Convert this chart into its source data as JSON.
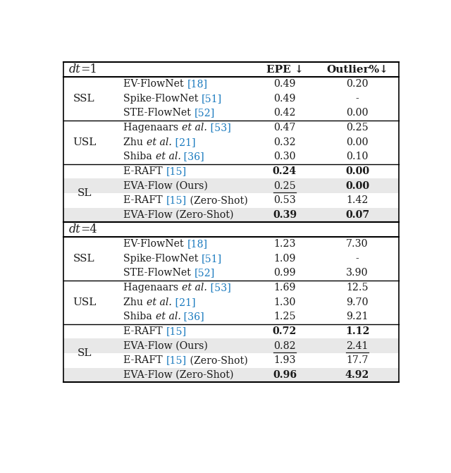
{
  "col_headers": [
    "EPE ↓",
    "Outlier%↓"
  ],
  "sections": [
    {
      "dt_label": "dt=1",
      "groups": [
        {
          "label": "SSL",
          "rows": [
            {
              "parts": [
                {
                  "text": "EV-FlowNet ",
                  "style": "normal"
                },
                {
                  "text": "[18]",
                  "style": "ref"
                }
              ],
              "epe": "0.49",
              "outlier": "0.20",
              "epe_bold": false,
              "outlier_bold": false,
              "epe_ul": false,
              "outlier_ul": false,
              "highlight": false
            },
            {
              "parts": [
                {
                  "text": "Spike-FlowNet ",
                  "style": "normal"
                },
                {
                  "text": "[51]",
                  "style": "ref"
                }
              ],
              "epe": "0.49",
              "outlier": "-",
              "epe_bold": false,
              "outlier_bold": false,
              "epe_ul": false,
              "outlier_ul": false,
              "highlight": false
            },
            {
              "parts": [
                {
                  "text": "STE-FlowNet ",
                  "style": "normal"
                },
                {
                  "text": "[52]",
                  "style": "ref"
                }
              ],
              "epe": "0.42",
              "outlier": "0.00",
              "epe_bold": false,
              "outlier_bold": false,
              "epe_ul": false,
              "outlier_ul": false,
              "highlight": false
            }
          ]
        },
        {
          "label": "USL",
          "rows": [
            {
              "parts": [
                {
                  "text": "Hagenaars ",
                  "style": "normal"
                },
                {
                  "text": "et al.",
                  "style": "italic"
                },
                {
                  "text": " [53]",
                  "style": "ref"
                }
              ],
              "epe": "0.47",
              "outlier": "0.25",
              "epe_bold": false,
              "outlier_bold": false,
              "epe_ul": false,
              "outlier_ul": false,
              "highlight": false
            },
            {
              "parts": [
                {
                  "text": "Zhu ",
                  "style": "normal"
                },
                {
                  "text": "et al.",
                  "style": "italic"
                },
                {
                  "text": " [21]",
                  "style": "ref"
                }
              ],
              "epe": "0.32",
              "outlier": "0.00",
              "epe_bold": false,
              "outlier_bold": false,
              "epe_ul": false,
              "outlier_ul": false,
              "highlight": false
            },
            {
              "parts": [
                {
                  "text": "Shiba ",
                  "style": "normal"
                },
                {
                  "text": "et al.",
                  "style": "italic"
                },
                {
                  "text": " [36]",
                  "style": "ref"
                }
              ],
              "epe": "0.30",
              "outlier": "0.10",
              "epe_bold": false,
              "outlier_bold": false,
              "epe_ul": false,
              "outlier_ul": false,
              "highlight": false
            }
          ]
        },
        {
          "label": "SL",
          "rows": [
            {
              "parts": [
                {
                  "text": "E-RAFT ",
                  "style": "normal"
                },
                {
                  "text": "[15]",
                  "style": "ref"
                }
              ],
              "epe": "0.24",
              "outlier": "0.00",
              "epe_bold": true,
              "outlier_bold": true,
              "epe_ul": false,
              "outlier_ul": false,
              "highlight": false
            },
            {
              "parts": [
                {
                  "text": "EVA-Flow (Ours)",
                  "style": "normal"
                }
              ],
              "epe": "0.25",
              "outlier": "0.00",
              "epe_bold": false,
              "outlier_bold": true,
              "epe_ul": true,
              "outlier_ul": false,
              "highlight": true
            },
            {
              "parts": [
                {
                  "text": "E-RAFT ",
                  "style": "normal"
                },
                {
                  "text": "[15]",
                  "style": "ref"
                },
                {
                  "text": " (Zero-Shot)",
                  "style": "normal"
                }
              ],
              "epe": "0.53",
              "outlier": "1.42",
              "epe_bold": false,
              "outlier_bold": false,
              "epe_ul": false,
              "outlier_ul": false,
              "highlight": false
            },
            {
              "parts": [
                {
                  "text": "EVA-Flow (Zero-Shot)",
                  "style": "normal"
                }
              ],
              "epe": "0.39",
              "outlier": "0.07",
              "epe_bold": true,
              "outlier_bold": true,
              "epe_ul": false,
              "outlier_ul": false,
              "highlight": true
            }
          ]
        }
      ]
    },
    {
      "dt_label": "dt=4",
      "groups": [
        {
          "label": "SSL",
          "rows": [
            {
              "parts": [
                {
                  "text": "EV-FlowNet ",
                  "style": "normal"
                },
                {
                  "text": "[18]",
                  "style": "ref"
                }
              ],
              "epe": "1.23",
              "outlier": "7.30",
              "epe_bold": false,
              "outlier_bold": false,
              "epe_ul": false,
              "outlier_ul": false,
              "highlight": false
            },
            {
              "parts": [
                {
                  "text": "Spike-FlowNet ",
                  "style": "normal"
                },
                {
                  "text": "[51]",
                  "style": "ref"
                }
              ],
              "epe": "1.09",
              "outlier": "-",
              "epe_bold": false,
              "outlier_bold": false,
              "epe_ul": false,
              "outlier_ul": false,
              "highlight": false
            },
            {
              "parts": [
                {
                  "text": "STE-FlowNet ",
                  "style": "normal"
                },
                {
                  "text": "[52]",
                  "style": "ref"
                }
              ],
              "epe": "0.99",
              "outlier": "3.90",
              "epe_bold": false,
              "outlier_bold": false,
              "epe_ul": false,
              "outlier_ul": false,
              "highlight": false
            }
          ]
        },
        {
          "label": "USL",
          "rows": [
            {
              "parts": [
                {
                  "text": "Hagenaars ",
                  "style": "normal"
                },
                {
                  "text": "et al.",
                  "style": "italic"
                },
                {
                  "text": " [53]",
                  "style": "ref"
                }
              ],
              "epe": "1.69",
              "outlier": "12.5",
              "epe_bold": false,
              "outlier_bold": false,
              "epe_ul": false,
              "outlier_ul": false,
              "highlight": false
            },
            {
              "parts": [
                {
                  "text": "Zhu ",
                  "style": "normal"
                },
                {
                  "text": "et al.",
                  "style": "italic"
                },
                {
                  "text": " [21]",
                  "style": "ref"
                }
              ],
              "epe": "1.30",
              "outlier": "9.70",
              "epe_bold": false,
              "outlier_bold": false,
              "epe_ul": false,
              "outlier_ul": false,
              "highlight": false
            },
            {
              "parts": [
                {
                  "text": "Shiba ",
                  "style": "normal"
                },
                {
                  "text": "et al.",
                  "style": "italic"
                },
                {
                  "text": " [36]",
                  "style": "ref"
                }
              ],
              "epe": "1.25",
              "outlier": "9.21",
              "epe_bold": false,
              "outlier_bold": false,
              "epe_ul": false,
              "outlier_ul": false,
              "highlight": false
            }
          ]
        },
        {
          "label": "SL",
          "rows": [
            {
              "parts": [
                {
                  "text": "E-RAFT ",
                  "style": "normal"
                },
                {
                  "text": "[15]",
                  "style": "ref"
                }
              ],
              "epe": "0.72",
              "outlier": "1.12",
              "epe_bold": true,
              "outlier_bold": true,
              "epe_ul": false,
              "outlier_ul": false,
              "highlight": false
            },
            {
              "parts": [
                {
                  "text": "EVA-Flow (Ours)",
                  "style": "normal"
                }
              ],
              "epe": "0.82",
              "outlier": "2.41",
              "epe_bold": false,
              "outlier_bold": false,
              "epe_ul": true,
              "outlier_ul": true,
              "highlight": true
            },
            {
              "parts": [
                {
                  "text": "E-RAFT ",
                  "style": "normal"
                },
                {
                  "text": "[15]",
                  "style": "ref"
                },
                {
                  "text": " (Zero-Shot)",
                  "style": "normal"
                }
              ],
              "epe": "1.93",
              "outlier": "17.7",
              "epe_bold": false,
              "outlier_bold": false,
              "epe_ul": false,
              "outlier_ul": false,
              "highlight": false
            },
            {
              "parts": [
                {
                  "text": "EVA-Flow (Zero-Shot)",
                  "style": "normal"
                }
              ],
              "epe": "0.96",
              "outlier": "4.92",
              "epe_bold": true,
              "outlier_bold": true,
              "epe_ul": false,
              "outlier_ul": false,
              "highlight": true
            }
          ]
        }
      ]
    }
  ],
  "highlight_color": "#e8e8e8",
  "ref_color": "#1a7abf",
  "text_color": "#1a1a1a",
  "bg_color": "#ffffff"
}
